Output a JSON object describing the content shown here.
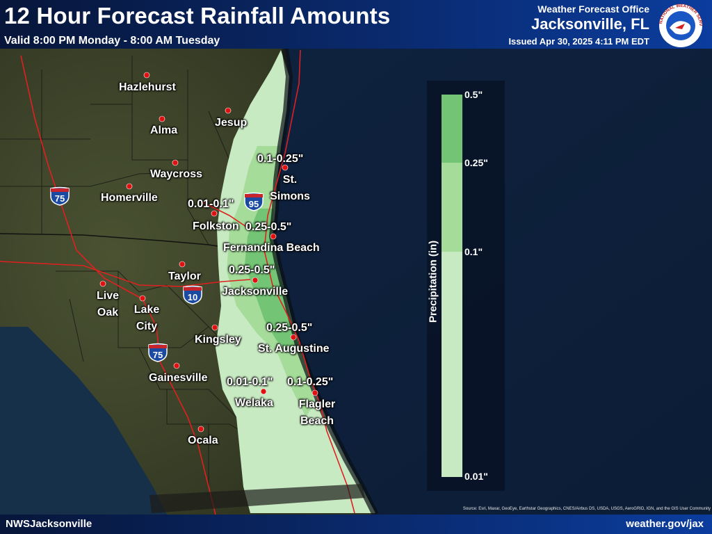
{
  "header": {
    "title": "12 Hour Forecast Rainfall Amounts",
    "subtitle": "Valid 8:00 PM Monday - 8:00 AM Tuesday",
    "office_line": "Weather Forecast Office",
    "office_city": "Jacksonville, FL",
    "issued": "Issued Apr 30, 2025 4:11 PM EDT",
    "logo_text": "NATIONAL WEATHER SERVICE"
  },
  "footer": {
    "left": "NWSJacksonville",
    "right": "weather.gov/jax",
    "source": "Source: Esri, Maxar, GeoEye, Earthstar Geographics, CNES/Airbus DS, USDA, USGS, AeroGRID, IGN, and the GIS User Community"
  },
  "cities": [
    {
      "name": "Hazlehurst"
    },
    {
      "name": "Alma"
    },
    {
      "name": "Jesup"
    },
    {
      "name": "Waycross"
    },
    {
      "name": "Homerville"
    },
    {
      "name": "St. Simons"
    },
    {
      "name": "Folkston"
    },
    {
      "name": "Fernandina Beach"
    },
    {
      "name": "Taylor"
    },
    {
      "name": "Jacksonville"
    },
    {
      "name": "Live Oak"
    },
    {
      "name": "Lake City"
    },
    {
      "name": "Kingsley"
    },
    {
      "name": "St. Augustine"
    },
    {
      "name": "Gainesville"
    },
    {
      "name": "Welaka"
    },
    {
      "name": "Flagler Beach"
    },
    {
      "name": "Ocala"
    }
  ],
  "amounts": [
    "0.1-0.25\"",
    "0.01-0.1\"",
    "0.25-0.5\"",
    "0.25-0.5\"",
    "0.25-0.5\"",
    "0.01-0.1\"",
    "0.1-0.25\""
  ],
  "highways": [
    "75",
    "95",
    "10",
    "75"
  ],
  "legend": {
    "title": "Precipitation (in)",
    "ticks": [
      "0.5\"",
      "0.25\"",
      "0.1\"",
      "0.01\""
    ],
    "colors": {
      "c1": "#c8eac2",
      "c2": "#a5dc9a",
      "c3": "#74c476"
    }
  },
  "colors": {
    "header": "#0a2a6e",
    "city_dot": "#e01010",
    "road": "#e02020",
    "ocean": "#10223d"
  }
}
